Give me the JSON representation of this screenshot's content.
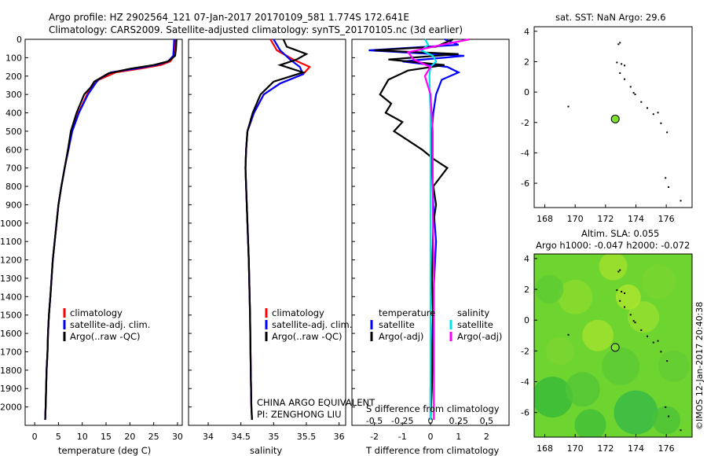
{
  "header": {
    "line1": "Argo profile: HZ 2902564_121 07-Jan-2017 20170109_581 1.774S 172.641E",
    "line2": "Climatology: CARS2009. Satellite-adjusted climatology: synTS_20170105.nc (3d earlier)"
  },
  "colors": {
    "climatology": "#ff0000",
    "satellite": "#0000ff",
    "argo": "#000000",
    "sal_satellite": "#00e5e5",
    "sal_argo": "#ff00ff",
    "obs_dot": "#7fdf2f"
  },
  "chart_data": [
    {
      "type": "line",
      "name": "temperature-profile",
      "xlabel": "temperature (deg C)",
      "ylabel": "",
      "xlim": [
        -2,
        31
      ],
      "ylim": [
        2100,
        0
      ],
      "xticks": [
        0,
        5,
        10,
        15,
        20,
        25,
        30
      ],
      "yticks": [
        0,
        100,
        200,
        300,
        400,
        500,
        600,
        700,
        800,
        900,
        1000,
        1100,
        1200,
        1300,
        1400,
        1500,
        1600,
        1700,
        1800,
        1900,
        2000
      ],
      "legend": [
        "climatology",
        "satellite-adj. clim.",
        "Argo(..raw -QC)"
      ],
      "series": [
        {
          "name": "climatology",
          "color": "#ff0000",
          "x": [
            29.6,
            29.5,
            29.3,
            28.5,
            26.5,
            22,
            17,
            13.5,
            12.3,
            11,
            9.2,
            7.8,
            7,
            6.3,
            5.6,
            5,
            4.6,
            4.2,
            3.8,
            3.3,
            3,
            2.8,
            2.7,
            2.5,
            2.4,
            2.3,
            2.2
          ],
          "y": [
            0,
            50,
            90,
            120,
            140,
            160,
            180,
            220,
            250,
            300,
            400,
            500,
            600,
            700,
            800,
            900,
            1000,
            1100,
            1200,
            1400,
            1500,
            1600,
            1700,
            1800,
            1900,
            2000,
            2070
          ]
        },
        {
          "name": "satellite-adj. clim.",
          "color": "#0000ff",
          "x": [
            29.3,
            29.2,
            29.1,
            28,
            25.5,
            21,
            16,
            13.3,
            12.5,
            11.2,
            9.3,
            7.9,
            7.1,
            6.3,
            5.6,
            5,
            4.6,
            4.2,
            3.8,
            3.3,
            3,
            2.8,
            2.7,
            2.5,
            2.4,
            2.3,
            2.2
          ],
          "y": [
            0,
            50,
            90,
            120,
            140,
            160,
            180,
            220,
            250,
            300,
            400,
            500,
            600,
            700,
            800,
            900,
            1000,
            1100,
            1200,
            1400,
            1500,
            1600,
            1700,
            1800,
            1900,
            2000,
            2070
          ]
        },
        {
          "name": "Argo(..raw -QC)",
          "color": "#000000",
          "x": [
            29.8,
            29.7,
            29.5,
            28,
            25,
            20,
            15.5,
            12.5,
            11.8,
            10.4,
            8.8,
            7.6,
            7,
            6.3,
            5.6,
            5,
            4.6,
            4.2,
            3.8,
            3.3,
            3,
            2.8,
            2.7,
            2.5,
            2.4,
            2.3,
            2.2
          ],
          "y": [
            0,
            50,
            90,
            120,
            140,
            160,
            185,
            230,
            260,
            300,
            400,
            500,
            600,
            700,
            800,
            900,
            1000,
            1100,
            1200,
            1400,
            1500,
            1600,
            1700,
            1800,
            1900,
            2000,
            2070
          ]
        }
      ]
    },
    {
      "type": "line",
      "name": "salinity-profile",
      "xlabel": "salinity",
      "ylabel": "",
      "xlim": [
        33.7,
        36.1
      ],
      "ylim": [
        2100,
        0
      ],
      "xticks": [
        34,
        34.5,
        35,
        35.5,
        36
      ],
      "legend": [
        "climatology",
        "satellite-adj. clim.",
        "Argo(..raw -QC)"
      ],
      "series": [
        {
          "name": "climatology",
          "color": "#ff0000",
          "x": [
            34.95,
            35.05,
            35.3,
            35.55,
            35.45,
            35.1,
            34.85,
            34.7,
            34.6,
            34.58,
            34.57,
            34.58,
            34.6,
            34.62,
            34.64,
            34.65,
            34.66,
            34.67
          ],
          "y": [
            0,
            60,
            110,
            150,
            190,
            240,
            300,
            400,
            500,
            600,
            700,
            800,
            1000,
            1200,
            1500,
            1800,
            2000,
            2070
          ]
        },
        {
          "name": "satellite-adj. clim.",
          "color": "#0000ff",
          "x": [
            35.0,
            35.1,
            35.25,
            35.4,
            35.45,
            35.1,
            34.85,
            34.7,
            34.6,
            34.58,
            34.57,
            34.58,
            34.6,
            34.62,
            34.64,
            34.65,
            34.66,
            34.67
          ],
          "y": [
            0,
            60,
            110,
            150,
            190,
            240,
            300,
            400,
            500,
            600,
            700,
            800,
            1000,
            1200,
            1500,
            1800,
            2000,
            2070
          ]
        },
        {
          "name": "Argo(..raw -QC)",
          "color": "#000000",
          "x": [
            35.15,
            35.2,
            35.5,
            35.35,
            35.1,
            35.45,
            35.0,
            34.8,
            34.68,
            34.6,
            34.58,
            34.57,
            34.58,
            34.6,
            34.62,
            34.64,
            34.65,
            34.66,
            34.67
          ],
          "y": [
            0,
            40,
            80,
            110,
            140,
            180,
            230,
            300,
            400,
            500,
            600,
            700,
            800,
            1000,
            1200,
            1500,
            1800,
            2000,
            2070
          ]
        }
      ]
    },
    {
      "type": "line",
      "name": "difference-from-climatology",
      "xlabel": "T difference from climatology",
      "xlabel_top": "S difference from climatology",
      "xlim": [
        -2.8,
        2.8
      ],
      "ylim": [
        2100,
        0
      ],
      "xticks": [
        -2,
        -1,
        0,
        1,
        2
      ],
      "xticks_top": [
        -0.5,
        -0.25,
        0,
        0.25,
        0.5
      ],
      "legend_t_title": "temperature",
      "legend_s_title": "salinity",
      "legend": [
        "satellite",
        "Argo(-adj)",
        "satellite",
        "Argo(-adj)"
      ],
      "series": [
        {
          "name": "T satellite",
          "color": "#0000ff",
          "x": [
            0.5,
            1.0,
            -2.2,
            1.2,
            -1.0,
            0.6,
            1.0,
            0.4,
            0.2,
            0.1,
            0.05,
            0.05,
            0.1,
            0.2,
            0.1,
            0.05,
            0.0,
            0.0
          ],
          "y": [
            0,
            30,
            60,
            90,
            120,
            150,
            180,
            220,
            300,
            400,
            500,
            700,
            900,
            1100,
            1400,
            1700,
            1900,
            2070
          ]
        },
        {
          "name": "T Argo(-adj)",
          "color": "#000000",
          "x": [
            0.8,
            0.2,
            -2.0,
            1.0,
            -1.5,
            0.5,
            -0.8,
            -1.5,
            -1.8,
            -1.4,
            -1.6,
            -1.0,
            -1.3,
            -0.8,
            -0.3,
            0.1,
            0.6,
            0.1,
            0.2,
            0.1,
            0.05,
            0.1,
            0.05,
            0.0
          ],
          "y": [
            0,
            40,
            60,
            80,
            110,
            140,
            170,
            220,
            300,
            350,
            400,
            450,
            500,
            550,
            600,
            650,
            700,
            800,
            900,
            1000,
            1300,
            1600,
            1900,
            2070
          ]
        },
        {
          "name": "S satellite",
          "color": "#00e5e5",
          "x": [
            -0.05,
            -0.02,
            -0.08,
            0.02,
            0.05,
            0.0,
            -0.01,
            0.0,
            0.0,
            0.0,
            0.0,
            0.0
          ],
          "y": [
            0,
            30,
            60,
            90,
            120,
            150,
            200,
            400,
            800,
            1200,
            1600,
            2070
          ]
        },
        {
          "name": "S Argo(-adj)",
          "color": "#ff00ff",
          "x": [
            0.35,
            0.1,
            -0.2,
            -0.15,
            0.0,
            -0.05,
            0.0,
            0.02,
            0.02,
            0.03,
            0.03,
            0.03
          ],
          "y": [
            0,
            30,
            70,
            110,
            150,
            200,
            300,
            500,
            900,
            1300,
            1700,
            2070
          ]
        }
      ]
    },
    {
      "type": "scatter",
      "name": "sst-map",
      "title": "sat. SST: NaN Argo: 29.6",
      "xlim": [
        167.3,
        177.7
      ],
      "ylim": [
        -7.6,
        4.3
      ],
      "xticks": [
        168,
        170,
        172,
        174,
        176
      ],
      "yticks": [
        -6,
        -4,
        -2,
        0,
        2,
        4
      ],
      "points": [
        {
          "x": 172.64,
          "y": -1.77
        }
      ]
    },
    {
      "type": "heatmap",
      "name": "sla-map",
      "title": "Altim. SLA: 0.055",
      "subtitle": "Argo h1000: -0.047 h2000: -0.072",
      "xlim": [
        167.3,
        177.7
      ],
      "ylim": [
        -7.6,
        4.3
      ],
      "xticks": [
        168,
        170,
        172,
        174,
        176
      ],
      "yticks": [
        -6,
        -4,
        -2,
        0,
        2,
        4
      ],
      "points": [
        {
          "x": 172.64,
          "y": -1.77
        }
      ]
    }
  ],
  "panel_texts": {
    "legend_clim": "climatology",
    "legend_sat": "satellite-adj. clim.",
    "legend_argo": "Argo(..raw -QC)",
    "china_line1": "CHINA ARGO EQUIVALENT",
    "china_line2": "PI: ZENGHONG LIU"
  },
  "footer": {
    "credit": "©IMOS 12-Jan-2017 20:40:38"
  }
}
